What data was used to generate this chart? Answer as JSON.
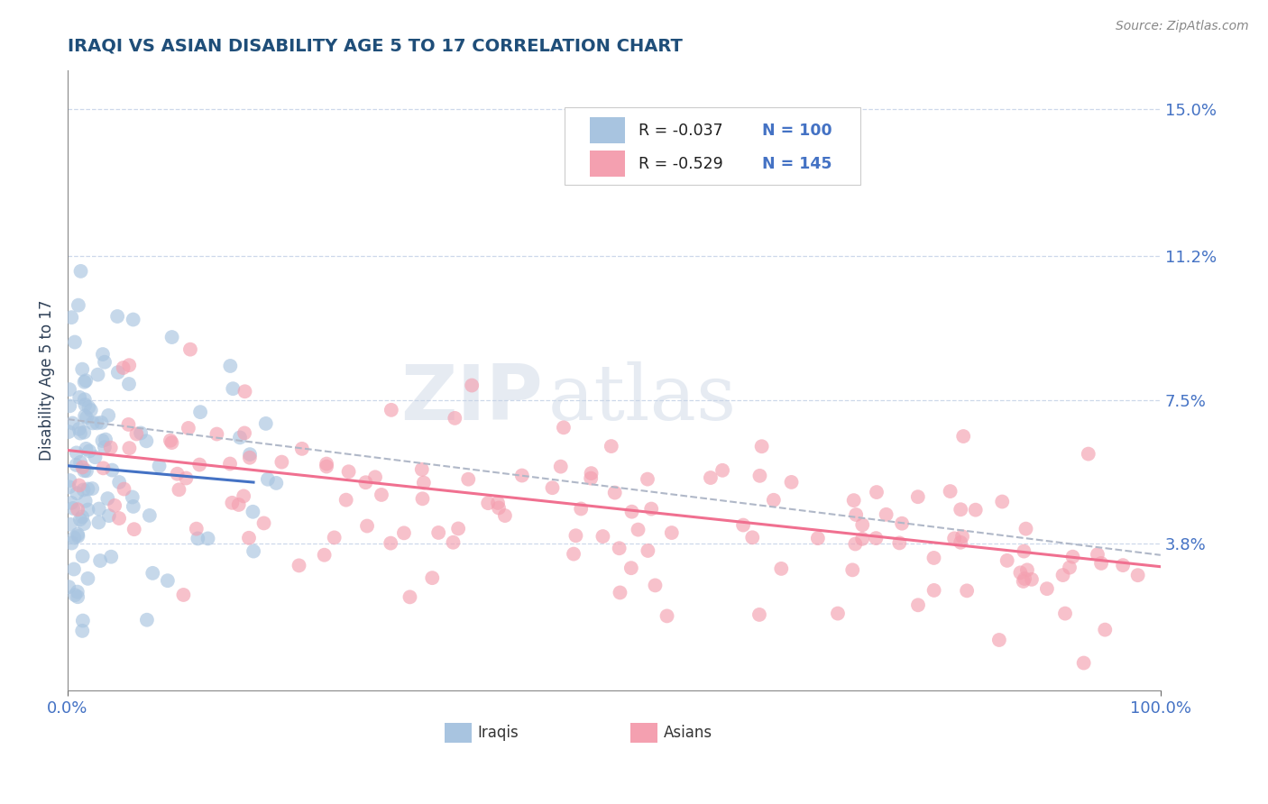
{
  "title": "IRAQI VS ASIAN DISABILITY AGE 5 TO 17 CORRELATION CHART",
  "source": "Source: ZipAtlas.com",
  "ylabel": "Disability Age 5 to 17",
  "xlim": [
    0,
    1.0
  ],
  "ylim": [
    0,
    0.16
  ],
  "yticks": [
    0.038,
    0.075,
    0.112,
    0.15
  ],
  "ytick_labels": [
    "3.8%",
    "7.5%",
    "11.2%",
    "15.0%"
  ],
  "xtick_labels": [
    "0.0%",
    "100.0%"
  ],
  "xticks": [
    0.0,
    1.0
  ],
  "iraqi_color": "#a8c4e0",
  "asian_color": "#f4a0b0",
  "iraqi_line_color": "#4472c4",
  "asian_line_color": "#f07090",
  "ci_line_color": "#b0b8c8",
  "legend_r_color": "#1f1f1f",
  "legend_n_color": "#4472c4",
  "legend_label_iraqi": "Iraqis",
  "legend_label_asian": "Asians",
  "title_color": "#1f4e79",
  "axis_label_color": "#2e4057",
  "tick_color": "#4472c4",
  "watermark_zip": "ZIP",
  "watermark_atlas": "atlas",
  "background_color": "#ffffff",
  "grid_color": "#c8d4e8",
  "iraqi_R": -0.037,
  "iraqi_N": 100,
  "asian_R": -0.529,
  "asian_N": 145,
  "legend_r_iraqi": "R = -0.037",
  "legend_n_iraqi": "N = 100",
  "legend_r_asian": "R = -0.529",
  "legend_n_asian": "N = 145"
}
